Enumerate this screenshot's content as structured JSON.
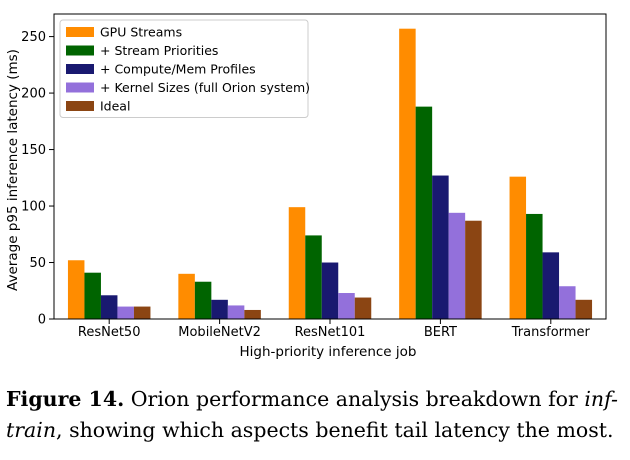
{
  "chart_data": {
    "type": "bar",
    "categories": [
      "ResNet50",
      "MobileNetV2",
      "ResNet101",
      "BERT",
      "Transformer"
    ],
    "series": [
      {
        "name": "GPU Streams",
        "color": "#ff8c00",
        "values": [
          52,
          40,
          99,
          257,
          126
        ]
      },
      {
        "name": "+ Stream Priorities",
        "color": "#006400",
        "values": [
          41,
          33,
          74,
          188,
          93
        ]
      },
      {
        "name": "+ Compute/Mem Profiles",
        "color": "#191970",
        "values": [
          21,
          17,
          50,
          127,
          59
        ]
      },
      {
        "name": "+ Kernel Sizes (full Orion system)",
        "color": "#9370db",
        "values": [
          11,
          12,
          23,
          94,
          29
        ]
      },
      {
        "name": "Ideal",
        "color": "#8b4513",
        "values": [
          11,
          8,
          19,
          87,
          17
        ]
      }
    ],
    "xlabel": "High-priority inference job",
    "ylabel": "Average p95 inference latency (ms)",
    "ylim": [
      0,
      270
    ],
    "yticks": [
      0,
      50,
      100,
      150,
      200,
      250
    ],
    "legend_position": "top-left",
    "grid": false
  },
  "caption": {
    "label": "Figure 14.",
    "text_before": " Orion performance analysis breakdown for ",
    "emphasis": "inf-train",
    "text_after": ", showing which aspects benefit tail latency the most."
  }
}
